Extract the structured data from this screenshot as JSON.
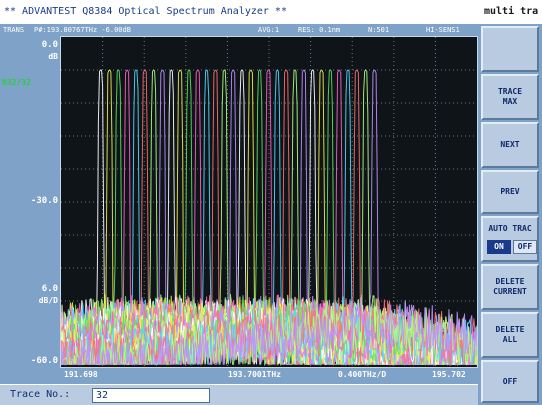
{
  "window": {
    "title": "** ADVANTEST Q8384 Optical Spectrum Analyzer **",
    "softkey_header": "multi tra"
  },
  "status": {
    "mode": "TRANS",
    "marker": "P#:193.80767THz -6.00dB",
    "avg": "AVG:1",
    "res": "RES: 0.1nm",
    "points": "N:501",
    "sens": "HI-SENS1"
  },
  "yaxis": {
    "top_value": "0.0",
    "top_unit": "dB",
    "marker_count": "N32/32",
    "mid_value": "-30.0",
    "scale_value": "6.0",
    "scale_unit": "dB/D",
    "bottom_value": "-60.0"
  },
  "xaxis": {
    "start": "191.698",
    "center": "193.7001THz",
    "span": "0.400THz/D",
    "stop": "195.702"
  },
  "trace": {
    "label": "Trace No.:",
    "value": "32"
  },
  "softkeys": {
    "trace_max": [
      "TRACE",
      "MAX"
    ],
    "next": "NEXT",
    "prev": "PREV",
    "auto_trac": "AUTO TRAC",
    "on": "ON",
    "off_toggle": "OFF",
    "delete_current": [
      "DELETE",
      "CURRENT"
    ],
    "delete_all": [
      "DELETE",
      "ALL"
    ],
    "off": "OFF"
  },
  "colors": {
    "background": "#7fa2c8",
    "plot_bg": "#0e1418",
    "grid": "#6e7880",
    "trace_palette": [
      "#ffffff",
      "#f0f04a",
      "#5ee05e",
      "#ff5fc8",
      "#55d8ff",
      "#ff7070",
      "#b0ff80",
      "#c090ff"
    ]
  },
  "chart_data": {
    "type": "line",
    "title": "",
    "xlabel": "",
    "ylabel": "",
    "x_unit": "THz",
    "y_unit": "dB",
    "xlim": [
      191.698,
      195.702
    ],
    "ylim": [
      -60.0,
      0.0
    ],
    "grid": true,
    "channel_count": 32,
    "channel_centers_thz": [
      192.08,
      192.165,
      192.25,
      192.335,
      192.42,
      192.505,
      192.59,
      192.675,
      192.76,
      192.845,
      192.93,
      193.015,
      193.1,
      193.185,
      193.27,
      193.355,
      193.44,
      193.525,
      193.61,
      193.695,
      193.78,
      193.865,
      193.95,
      194.035,
      194.12,
      194.205,
      194.29,
      194.375,
      194.46,
      194.545,
      194.63,
      194.715
    ],
    "peak_level_db": -6.0,
    "noise_floor_db": -52.0,
    "passband_width_thz": 0.06
  }
}
